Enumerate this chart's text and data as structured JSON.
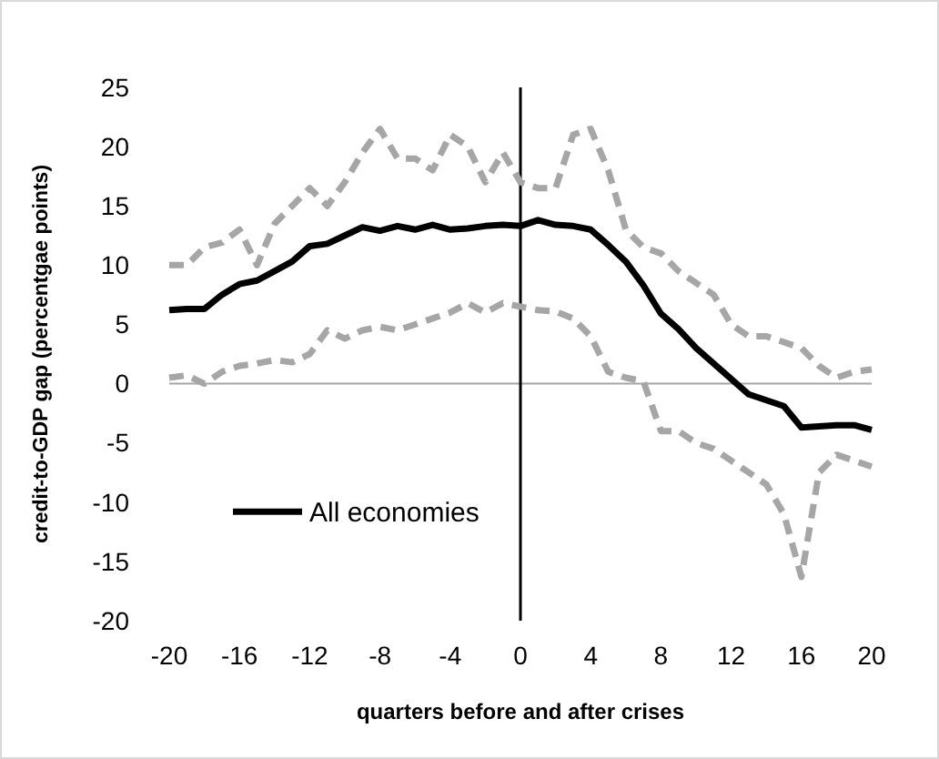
{
  "chart_data": {
    "type": "line",
    "xlabel": "quarters before and after crises",
    "ylabel": "credit-to-GDP gap (percentgae points)",
    "x": [
      -20,
      -19,
      -18,
      -17,
      -16,
      -15,
      -14,
      -13,
      -12,
      -11,
      -10,
      -9,
      -8,
      -7,
      -6,
      -5,
      -4,
      -3,
      -2,
      -1,
      0,
      1,
      2,
      3,
      4,
      5,
      6,
      7,
      8,
      9,
      10,
      11,
      12,
      13,
      14,
      15,
      16,
      17,
      18,
      19,
      20
    ],
    "series": [
      {
        "color": "#a6a6a6",
        "line_style": "dashed",
        "values": [
          10,
          10,
          11.5,
          11.9,
          13,
          10,
          13.5,
          15,
          16.5,
          15,
          17,
          19.5,
          21.5,
          19,
          19,
          18,
          21,
          20,
          17,
          19.5,
          17,
          16.5,
          16.5,
          21,
          21.5,
          18,
          13,
          11.5,
          11,
          9.5,
          8.5,
          7.5,
          5,
          4,
          4,
          3.5,
          3,
          1.5,
          0.5,
          1,
          1.2
        ]
      },
      {
        "color": "#a6a6a6",
        "line_style": "dashed",
        "values": [
          0.5,
          0.7,
          0,
          1,
          1.5,
          1.7,
          2,
          1.8,
          2.5,
          4.5,
          3.8,
          4.5,
          4.8,
          4.5,
          5,
          5.5,
          6,
          6.8,
          6,
          6.8,
          6.5,
          6.2,
          6.1,
          5.5,
          4,
          1,
          0.5,
          0.2,
          -4,
          -4,
          -5,
          -5.5,
          -6.5,
          -7.5,
          -8.5,
          -11,
          -16.3,
          -7.5,
          -6,
          -6.5,
          -7
        ]
      },
      {
        "name": "All economies",
        "color": "#000000",
        "line_style": "solid",
        "values": [
          6.2,
          6.3,
          6.3,
          7.5,
          8.4,
          8.7,
          9.5,
          10.3,
          11.6,
          11.8,
          12.5,
          13.2,
          12.9,
          13.3,
          13,
          13.4,
          13,
          13.1,
          13.3,
          13.4,
          13.3,
          13.8,
          13.4,
          13.3,
          13,
          11.7,
          10.3,
          8.3,
          5.9,
          4.6,
          3,
          1.7,
          0.4,
          -0.9,
          -1.4,
          -1.9,
          -3.7,
          -3.6,
          -3.5,
          -3.5,
          -3.9
        ]
      }
    ],
    "xlim": [
      -20,
      20
    ],
    "xticks": [
      -20,
      -16,
      -12,
      -8,
      -4,
      0,
      4,
      8,
      12,
      16,
      20
    ],
    "ylim": [
      -20,
      25
    ],
    "yticks": [
      -20,
      -15,
      -10,
      -5,
      0,
      5,
      10,
      15,
      20,
      25
    ],
    "ref_lines": [
      {
        "axis": "x",
        "value": 0,
        "color": "#000000"
      }
    ],
    "grid": false,
    "legend": "left",
    "marker": "none"
  }
}
